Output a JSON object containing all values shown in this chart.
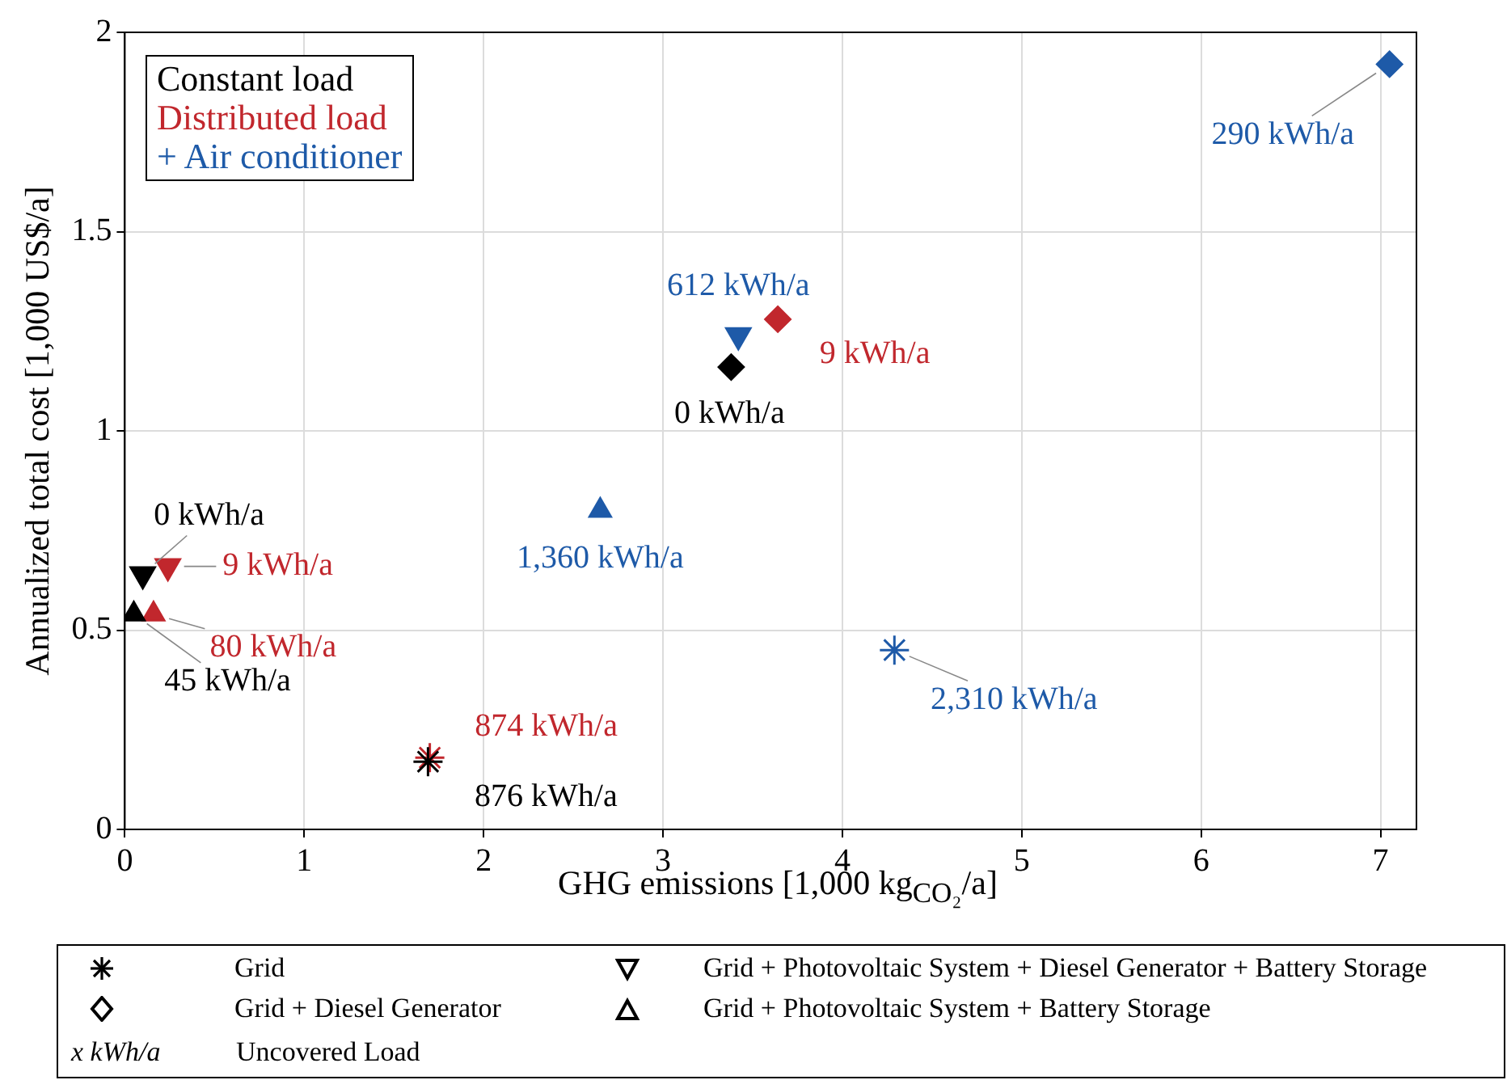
{
  "chart_data": {
    "type": "scatter",
    "xlabel": "GHG emissions [1,000 kg$_{CO₂}$/a]",
    "ylabel": "Annualized total cost [1,000 US$/a]",
    "xlim": [
      0,
      7.2
    ],
    "xticks": [
      0,
      1,
      2,
      3,
      4,
      5,
      6,
      7
    ],
    "ylim": [
      0,
      2
    ],
    "yticks": [
      0,
      0.5,
      1,
      1.5,
      2
    ],
    "grid": true,
    "series": [
      {
        "marker": "cross",
        "color": "#000000",
        "x": [
          1.69
        ],
        "values": [
          0.17
        ]
      },
      {
        "marker": "diamond",
        "color": "#000000",
        "x": [
          3.38
        ],
        "values": [
          1.16
        ]
      },
      {
        "marker": "triangle-down",
        "color": "#000000",
        "x": [
          0.1
        ],
        "values": [
          0.64
        ]
      },
      {
        "marker": "triangle",
        "color": "#000000",
        "x": [
          0.05
        ],
        "values": [
          0.54
        ]
      },
      {
        "marker": "cross",
        "color": "#c1272d",
        "x": [
          1.7
        ],
        "values": [
          0.18
        ]
      },
      {
        "marker": "diamond",
        "color": "#c1272d",
        "x": [
          3.64
        ],
        "values": [
          1.28
        ]
      },
      {
        "marker": "triangle-down",
        "color": "#c1272d",
        "x": [
          0.24
        ],
        "values": [
          0.66
        ]
      },
      {
        "marker": "triangle",
        "color": "#c1272d",
        "x": [
          0.16
        ],
        "values": [
          0.54
        ]
      },
      {
        "marker": "cross",
        "color": "#1e5aa8",
        "x": [
          4.29
        ],
        "values": [
          0.45
        ]
      },
      {
        "marker": "diamond",
        "color": "#1e5aa8",
        "x": [
          7.05
        ],
        "values": [
          1.92
        ]
      },
      {
        "marker": "triangle-down",
        "color": "#1e5aa8",
        "x": [
          3.42
        ],
        "values": [
          1.24
        ]
      },
      {
        "marker": "triangle",
        "color": "#1e5aa8",
        "x": [
          2.65
        ],
        "values": [
          0.8
        ]
      }
    ],
    "annotations": [
      "Constant load",
      "Distributed load",
      "+ Air conditioner",
      "Grid",
      "Grid + Diesel Generator",
      "Grid + Photovoltaic System + Diesel Generator + Battery Storage",
      "Grid + Photovoltaic System + Battery Storage",
      "x kWh/a",
      "Uncovered Load",
      {
        "text": "876 kWh/a",
        "x": 1.69,
        "y": 0.17
      },
      {
        "text": "0 kWh/a",
        "x": 3.38,
        "y": 1.16
      },
      {
        "text": "0 kWh/a",
        "x": 0.1,
        "y": 0.64
      },
      {
        "text": "45 kWh/a",
        "x": 0.05,
        "y": 0.54
      },
      {
        "text": "874 kWh/a",
        "x": 1.7,
        "y": 0.18
      },
      {
        "text": "9 kWh/a",
        "x": 3.64,
        "y": 1.28
      },
      {
        "text": "9 kWh/a",
        "x": 0.24,
        "y": 0.66
      },
      {
        "text": "80 kWh/a",
        "x": 0.16,
        "y": 0.54
      },
      {
        "text": "2,310 kWh/a",
        "x": 4.29,
        "y": 0.45
      },
      {
        "text": "290 kWh/a",
        "x": 7.05,
        "y": 1.92
      },
      {
        "text": "612 kWh/a",
        "x": 3.42,
        "y": 1.24
      },
      {
        "text": "1,360 kWh/a",
        "x": 2.65,
        "y": 0.8
      }
    ]
  }
}
